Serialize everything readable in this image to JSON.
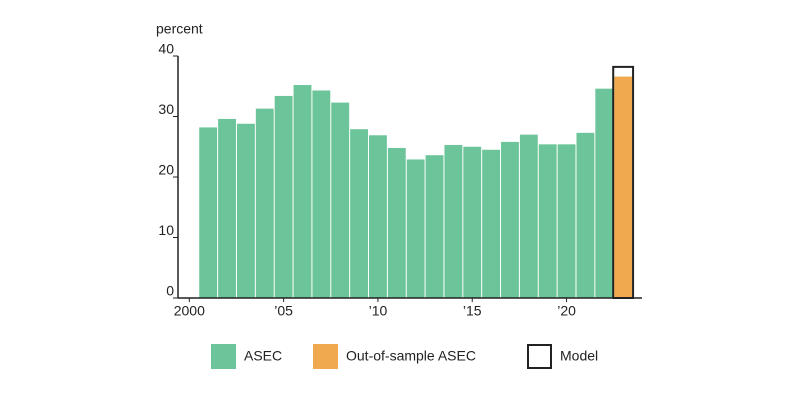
{
  "chart_data": {
    "type": "bar",
    "y_label": "percent",
    "x": [
      2001,
      2002,
      2003,
      2004,
      2005,
      2006,
      2007,
      2008,
      2009,
      2010,
      2011,
      2012,
      2013,
      2014,
      2015,
      2016,
      2017,
      2018,
      2019,
      2020,
      2021,
      2022,
      2023
    ],
    "series": [
      {
        "name": "ASEC",
        "color": "#6cc59a",
        "values": [
          28.2,
          29.6,
          28.8,
          31.3,
          33.4,
          35.2,
          34.3,
          32.3,
          27.9,
          26.9,
          24.8,
          22.9,
          23.6,
          25.3,
          25.0,
          24.5,
          25.8,
          27.0,
          25.4,
          25.4,
          27.3,
          34.6,
          null
        ]
      },
      {
        "name": "Out-of-sample ASEC",
        "color": "#f0a94f",
        "values": [
          null,
          null,
          null,
          null,
          null,
          null,
          null,
          null,
          null,
          null,
          null,
          null,
          null,
          null,
          null,
          null,
          null,
          null,
          null,
          null,
          null,
          null,
          36.6
        ]
      },
      {
        "name": "Model",
        "color": "#222222",
        "outline": true,
        "values": [
          null,
          null,
          null,
          null,
          null,
          null,
          null,
          null,
          null,
          null,
          null,
          null,
          null,
          null,
          null,
          null,
          null,
          null,
          null,
          null,
          null,
          null,
          38.2
        ]
      }
    ],
    "xlim": [
      1999.4,
      2024
    ],
    "xticks": [
      {
        "value": 2000,
        "label": "2000"
      },
      {
        "value": 2005,
        "label": "’05"
      },
      {
        "value": 2010,
        "label": "’10"
      },
      {
        "value": 2015,
        "label": "’15"
      },
      {
        "value": 2020,
        "label": "’20"
      }
    ],
    "ylim": [
      0,
      40
    ],
    "yticks": [
      0,
      10,
      20,
      30,
      40
    ],
    "legend": "bottom"
  }
}
